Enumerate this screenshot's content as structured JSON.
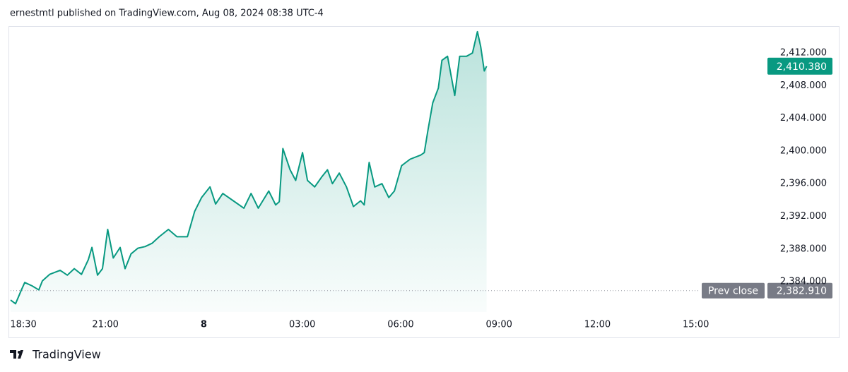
{
  "header": {
    "text": "ernestmtl published on TradingView.com, Aug 08, 2024 08:38 UTC-4"
  },
  "chart_data": {
    "type": "area",
    "x": [
      18.11,
      18.26,
      18.44,
      18.54,
      18.76,
      18.97,
      19.08,
      19.3,
      19.62,
      19.84,
      20.05,
      20.27,
      20.48,
      20.59,
      20.76,
      20.91,
      21.07,
      21.24,
      21.45,
      21.6,
      21.78,
      21.99,
      22.21,
      22.42,
      22.64,
      22.92,
      23.18,
      23.5,
      23.72,
      23.93,
      24.19,
      24.36,
      24.58,
      24.9,
      25.22,
      25.44,
      25.66,
      25.98,
      26.19,
      26.3,
      26.41,
      26.63,
      26.8,
      27.01,
      27.16,
      27.38,
      27.59,
      27.77,
      27.92,
      28.13,
      28.35,
      28.56,
      28.78,
      28.89,
      29.04,
      29.21,
      29.43,
      29.64,
      29.81,
      30.03,
      30.29,
      30.61,
      30.72,
      30.83,
      30.98,
      31.15,
      31.26,
      31.43,
      31.65,
      31.8,
      32.01,
      32.19,
      32.34,
      32.44,
      32.55,
      32.62
    ],
    "values": [
      2381.75,
      2381.3,
      2383.0,
      2383.9,
      2383.5,
      2383.0,
      2384.1,
      2384.9,
      2385.4,
      2384.8,
      2385.6,
      2384.9,
      2386.7,
      2388.2,
      2384.8,
      2385.6,
      2390.4,
      2386.9,
      2388.2,
      2385.6,
      2387.4,
      2388.1,
      2388.3,
      2388.7,
      2389.5,
      2390.4,
      2389.5,
      2389.5,
      2392.6,
      2394.3,
      2395.6,
      2393.5,
      2394.8,
      2393.9,
      2393.0,
      2394.8,
      2393.0,
      2395.1,
      2393.4,
      2393.8,
      2400.3,
      2397.7,
      2396.4,
      2399.8,
      2396.4,
      2395.6,
      2396.8,
      2397.7,
      2396.0,
      2397.3,
      2395.6,
      2393.2,
      2393.9,
      2393.4,
      2398.6,
      2395.6,
      2396.0,
      2394.3,
      2395.1,
      2398.2,
      2399.0,
      2399.5,
      2399.8,
      2402.5,
      2405.9,
      2407.7,
      2411.1,
      2411.6,
      2406.8,
      2411.6,
      2411.6,
      2412.0,
      2414.6,
      2412.8,
      2409.8,
      2410.38
    ],
    "color": "#089981",
    "xlim": [
      18.11,
      41.16
    ],
    "xticks": [
      {
        "value": 18.5,
        "label": "18:30"
      },
      {
        "value": 21,
        "label": "21:00"
      },
      {
        "value": 24,
        "label": "8"
      },
      {
        "value": 27,
        "label": "03:00"
      },
      {
        "value": 30,
        "label": "06:00"
      },
      {
        "value": 33,
        "label": "09:00"
      },
      {
        "value": 36,
        "label": "12:00"
      },
      {
        "value": 39,
        "label": "15:00"
      }
    ],
    "ylim": [
      2379.6,
      2415.2
    ],
    "yticks": [
      {
        "value": 2384,
        "label": "2,384.000"
      },
      {
        "value": 2388,
        "label": "2,388.000"
      },
      {
        "value": 2392,
        "label": "2,392.000"
      },
      {
        "value": 2396,
        "label": "2,396.000"
      },
      {
        "value": 2400,
        "label": "2,400.000"
      },
      {
        "value": 2404,
        "label": "2,404.000"
      },
      {
        "value": 2408,
        "label": "2,408.000"
      },
      {
        "value": 2412,
        "label": "2,412.000"
      }
    ],
    "grid": false,
    "last_price": {
      "value": 2410.38,
      "label": "2,410.380"
    },
    "prev_close": {
      "name": "Prev close",
      "value": 2382.91,
      "label": "2,382.910"
    }
  },
  "footer": {
    "brand": "TradingView"
  }
}
